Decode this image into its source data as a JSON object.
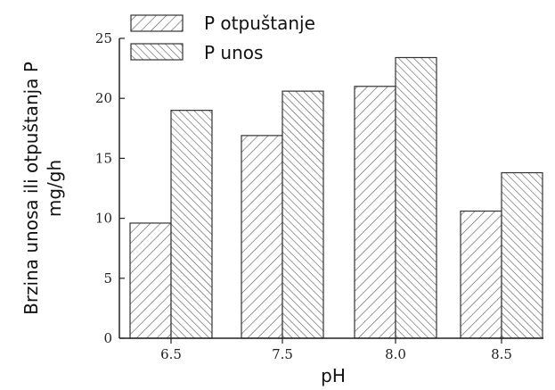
{
  "chart_data": {
    "type": "bar",
    "categories": [
      "6.5",
      "7.5",
      "8.0",
      "8.5"
    ],
    "series": [
      {
        "name": "P otpuštanje",
        "values": [
          9.6,
          16.9,
          21.0,
          10.6
        ]
      },
      {
        "name": "P unos",
        "values": [
          19.0,
          20.6,
          23.4,
          13.8
        ]
      }
    ],
    "xlabel": "pH",
    "ylabel_line1": "Brzina unosa ili otpuštanja P",
    "ylabel_line2": "mg/gh",
    "ylim": [
      0,
      25
    ],
    "yticks": [
      "0",
      "5",
      "10",
      "15",
      "20",
      "25"
    ],
    "grid": false,
    "legend_position": "top-left"
  }
}
